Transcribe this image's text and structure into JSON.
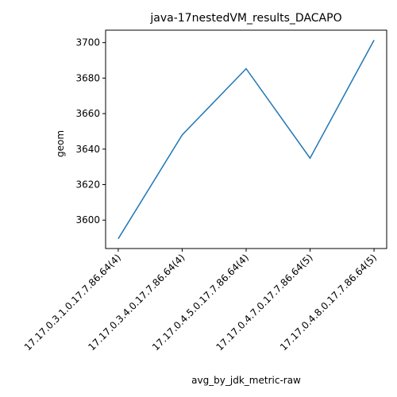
{
  "chart_data": {
    "type": "line",
    "title": "java-17nestedVM_results_DACAPO",
    "xlabel": "avg_by_jdk_metric-raw",
    "ylabel": "geom",
    "categories": [
      "17.17.0.3.1.0.17.7.86.64(4)",
      "17.17.0.3.4.0.17.7.86.64(4)",
      "17.17.0.4.5.0.17.7.86.64(4)",
      "17.17.0.4.7.0.17.7.86.64(5)",
      "17.17.0.4.8.0.17.7.86.64(5)"
    ],
    "series": [
      {
        "values": [
          3589.5,
          3648.0,
          3685.3,
          3634.9,
          3701.4
        ],
        "color": "#1f77b4"
      }
    ],
    "ylim": [
      3584,
      3707
    ],
    "yticks": [
      3600,
      3620,
      3640,
      3660,
      3680,
      3700
    ],
    "grid": false,
    "legend": "none"
  }
}
